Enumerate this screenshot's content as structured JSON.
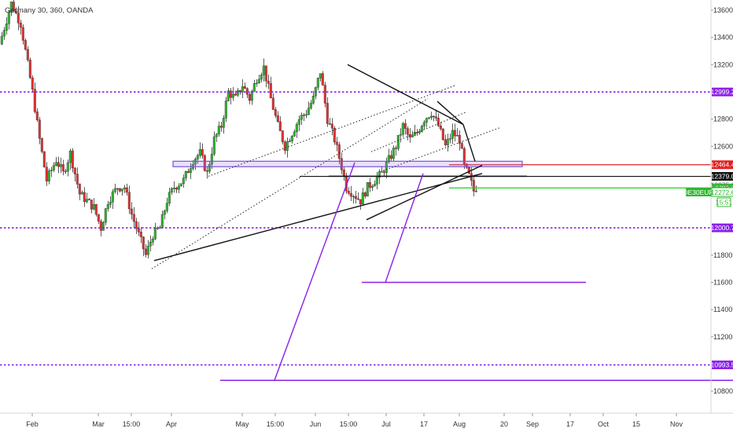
{
  "header": {
    "title": "Germany 30, 360, OANDA"
  },
  "chart_data": {
    "type": "candlestick",
    "title": "Germany 30, 360, OANDA",
    "ylim": [
      10680,
      13720
    ],
    "grid": false,
    "x_ticks": [
      {
        "label": "Feb",
        "day": 0
      },
      {
        "label": "Mar",
        "day": 28
      },
      {
        "label": "15:00",
        "day": 42
      },
      {
        "label": "Apr",
        "day": 59
      },
      {
        "label": "May",
        "day": 89
      },
      {
        "label": "15:00",
        "day": 103
      },
      {
        "label": "Jun",
        "day": 120
      },
      {
        "label": "15:00",
        "day": 134
      },
      {
        "label": "Jul",
        "day": 150
      },
      {
        "label": "17",
        "day": 166
      },
      {
        "label": "Aug",
        "day": 181
      },
      {
        "label": "20",
        "day": 200
      },
      {
        "label": "Sep",
        "day": 212
      },
      {
        "label": "17",
        "day": 228
      },
      {
        "label": "Oct",
        "day": 242
      },
      {
        "label": "15",
        "day": 256
      },
      {
        "label": "Nov",
        "day": 273
      }
    ],
    "y_ticks": [
      13600,
      13400,
      13200,
      12800,
      12600,
      11800,
      11600,
      11400,
      11200,
      10800
    ],
    "price_path": [
      [
        -12,
        13350
      ],
      [
        -7,
        13650
      ],
      [
        -3,
        13500
      ],
      [
        2,
        13000
      ],
      [
        5,
        12650
      ],
      [
        8,
        12350
      ],
      [
        12,
        12500
      ],
      [
        15,
        12400
      ],
      [
        18,
        12550
      ],
      [
        22,
        12250
      ],
      [
        25,
        12200
      ],
      [
        28,
        12150
      ],
      [
        31,
        12000
      ],
      [
        34,
        12200
      ],
      [
        38,
        12300
      ],
      [
        41,
        12300
      ],
      [
        44,
        12100
      ],
      [
        47,
        11950
      ],
      [
        50,
        11800
      ],
      [
        53,
        11950
      ],
      [
        56,
        12000
      ],
      [
        59,
        12200
      ],
      [
        62,
        12300
      ],
      [
        66,
        12350
      ],
      [
        70,
        12500
      ],
      [
        73,
        12550
      ],
      [
        76,
        12400
      ],
      [
        79,
        12650
      ],
      [
        82,
        12750
      ],
      [
        85,
        13000
      ],
      [
        88,
        12950
      ],
      [
        91,
        13050
      ],
      [
        94,
        12950
      ],
      [
        97,
        13100
      ],
      [
        100,
        13180
      ],
      [
        103,
        12950
      ],
      [
        106,
        12750
      ],
      [
        109,
        12600
      ],
      [
        112,
        12700
      ],
      [
        115,
        12800
      ],
      [
        118,
        12850
      ],
      [
        121,
        12950
      ],
      [
        124,
        13150
      ],
      [
        127,
        12800
      ],
      [
        130,
        12650
      ],
      [
        133,
        12450
      ],
      [
        135,
        12300
      ],
      [
        138,
        12250
      ],
      [
        141,
        12200
      ],
      [
        144,
        12300
      ],
      [
        147,
        12350
      ],
      [
        150,
        12400
      ],
      [
        153,
        12500
      ],
      [
        156,
        12600
      ],
      [
        159,
        12750
      ],
      [
        162,
        12650
      ],
      [
        165,
        12700
      ],
      [
        168,
        12800
      ],
      [
        171,
        12850
      ],
      [
        174,
        12750
      ],
      [
        177,
        12600
      ],
      [
        180,
        12700
      ],
      [
        183,
        12650
      ],
      [
        185,
        12450
      ],
      [
        187,
        12380
      ],
      [
        189,
        12272
      ]
    ],
    "series": [
      {
        "name": "Bid",
        "value": 12272.6,
        "color": "#2eb82e"
      },
      {
        "name": "Ask",
        "value": 12275.6,
        "color": "#2eb82e"
      }
    ],
    "horizontal_levels": [
      {
        "value": 12999.2,
        "label": "12999.2",
        "style": "dotted",
        "color": "#8a1fe8"
      },
      {
        "value": 12464.4,
        "label": "12464.4",
        "style": "solid",
        "color": "#e02020"
      },
      {
        "value": 12379.0,
        "label": "12379.0",
        "style": "solid",
        "color": "#111111"
      },
      {
        "value": 12293.9,
        "label": "12293.9",
        "style": "solid",
        "color": "#22cc22"
      },
      {
        "value": 12000.7,
        "label": "12000.7",
        "style": "dotted",
        "color": "#8a1fe8"
      },
      {
        "value": 10993.5,
        "label": "10993.5",
        "style": "dotted",
        "color": "#8a1fe8"
      }
    ],
    "symbol_badge": {
      "label": "DE30EUR",
      "value": "12272.6",
      "countdown": "15:51",
      "color": "#2eb82e"
    },
    "price_labels": {
      "ask": "12275.6"
    },
    "drawings": [
      {
        "kind": "zone",
        "name": "supply-zone",
        "days": [
          61,
          209
        ],
        "values": [
          12490,
          12450
        ],
        "color": "#7b4fd6"
      },
      {
        "kind": "line",
        "name": "uptrend-support-line",
        "days": [
          53,
          192
        ],
        "values": [
          11760,
          12400
        ],
        "color": "#111111",
        "style": "solid"
      },
      {
        "kind": "line",
        "name": "lower-channel-line",
        "days": [
          143,
          192
        ],
        "values": [
          12060,
          12460
        ],
        "color": "#111111",
        "style": "solid"
      },
      {
        "kind": "line",
        "name": "descending-resistance-line",
        "days": [
          135,
          184
        ],
        "values": [
          13200,
          12760
        ],
        "color": "#111111",
        "style": "solid"
      },
      {
        "kind": "line",
        "name": "resistance-curve-1",
        "days": [
          173,
          184
        ],
        "values": [
          12930,
          12760
        ],
        "color": "#111111",
        "style": "solid"
      },
      {
        "kind": "line",
        "name": "resistance-curve-2",
        "days": [
          184,
          189
        ],
        "values": [
          12760,
          12490
        ],
        "color": "#111111",
        "style": "solid"
      },
      {
        "kind": "line",
        "name": "neckline",
        "days": [
          127,
          211
        ],
        "values": [
          12380,
          12380
        ],
        "color": "#111111",
        "style": "solid"
      },
      {
        "kind": "line",
        "name": "dotted-trend-1",
        "days": [
          52,
          169
        ],
        "values": [
          11700,
          12950
        ],
        "color": "#333333",
        "style": "dotted"
      },
      {
        "kind": "line",
        "name": "dotted-trend-2",
        "days": [
          76,
          181
        ],
        "values": [
          12380,
          13050
        ],
        "color": "#333333",
        "style": "dotted"
      },
      {
        "kind": "line",
        "name": "dotted-trend-3",
        "days": [
          150,
          200
        ],
        "values": [
          12420,
          12740
        ],
        "color": "#333333",
        "style": "dotted"
      },
      {
        "kind": "line",
        "name": "dotted-trend-4",
        "days": [
          145,
          185
        ],
        "values": [
          12560,
          12850
        ],
        "color": "#333333",
        "style": "dotted"
      },
      {
        "kind": "line",
        "name": "projection-line-1",
        "days": [
          104,
          138
        ],
        "values": [
          10880,
          12480
        ],
        "color": "#8a1fe8",
        "style": "solid"
      },
      {
        "kind": "line",
        "name": "projection-line-2",
        "days": [
          151,
          167
        ],
        "values": [
          11600,
          12400
        ],
        "color": "#8a1fe8",
        "style": "solid"
      },
      {
        "kind": "line",
        "name": "target-line-1",
        "days": [
          141,
          236
        ],
        "values": [
          11600,
          11600
        ],
        "color": "#8a1fe8",
        "style": "solid"
      },
      {
        "kind": "line",
        "name": "target-line-2",
        "days": [
          81,
          312
        ],
        "values": [
          10880,
          10880
        ],
        "color": "#8a1fe8",
        "style": "solid"
      }
    ],
    "colors": {
      "up": "#2eb82e",
      "down": "#e63232",
      "wick": "#333333",
      "axis_border": "#d4d4d4"
    }
  }
}
